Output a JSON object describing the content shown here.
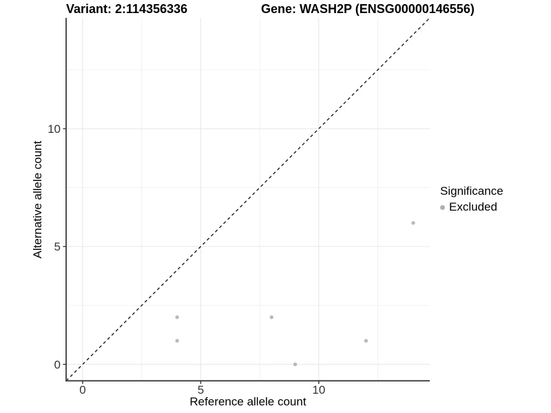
{
  "header": {
    "variant_title": "Variant: 2:114356336",
    "gene_title": "Gene: WASH2P (ENSG00000146556)"
  },
  "chart_data": {
    "type": "scatter",
    "title_left": "Variant: 2:114356336",
    "title_right": "Gene: WASH2P (ENSG00000146556)",
    "xlabel": "Reference allele count",
    "ylabel": "Alternative allele count",
    "xlim": [
      -0.7,
      14.7
    ],
    "ylim": [
      -0.7,
      14.7
    ],
    "x_major_ticks": [
      0,
      5,
      10
    ],
    "y_major_ticks": [
      0,
      5,
      10
    ],
    "x_minor_ticks": [
      2.5,
      7.5,
      12.5
    ],
    "y_minor_ticks": [
      2.5,
      7.5,
      12.5
    ],
    "grid": "major-and-minor",
    "identity_line": {
      "style": "dashed",
      "from": [
        -0.7,
        -0.7
      ],
      "to": [
        14.7,
        14.7
      ],
      "color": "#1a1a1a"
    },
    "series": [
      {
        "name": "Excluded",
        "color": "#b9b9b9",
        "points": [
          [
            4,
            1
          ],
          [
            4,
            2
          ],
          [
            8,
            2
          ],
          [
            9,
            0
          ],
          [
            12,
            1
          ],
          [
            14,
            6
          ]
        ]
      }
    ],
    "legend": {
      "title": "Significance",
      "position": "right",
      "entries": [
        {
          "label": "Excluded",
          "color": "#afafaf"
        }
      ]
    },
    "colors": {
      "grid_major": "#e8e8e8",
      "grid_minor": "#f2f2f2",
      "axis_line": "#444444",
      "tick_label": "#333333",
      "point": "#b9b9b9"
    }
  }
}
